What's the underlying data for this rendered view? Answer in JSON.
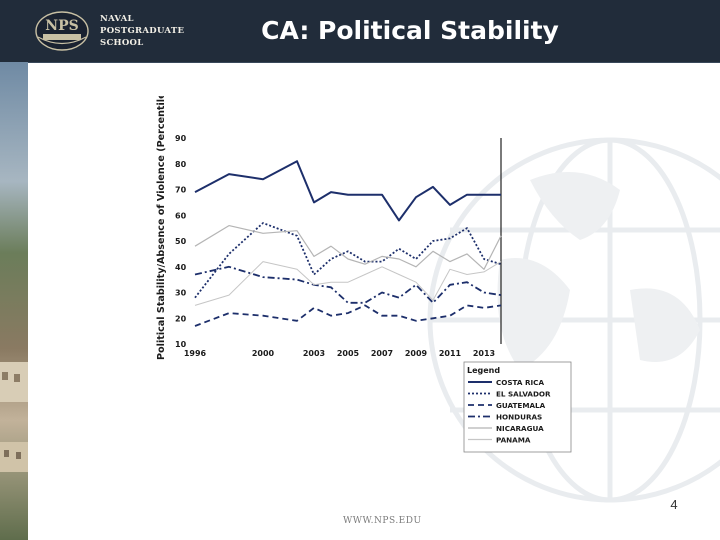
{
  "header": {
    "logo_lines": [
      "NAVAL",
      "POSTGRADUATE",
      "SCHOOL"
    ],
    "logo_badge": "NPS",
    "title": "CA: Political Stability",
    "background_color": "#212c3a"
  },
  "footer": {
    "url": "WWW.NPS.EDU",
    "page_number": "4"
  },
  "chart_data": {
    "type": "line",
    "title": "",
    "xlabel": "",
    "ylabel": "Political Stability/Absence of Violence (Percentile)",
    "xlim": [
      1996,
      2014
    ],
    "ylim": [
      10,
      90
    ],
    "x_tick_labels": [
      "1996",
      "2000",
      "2003",
      "2005",
      "2007",
      "2009",
      "2011",
      "2013"
    ],
    "y_ticks": [
      10,
      20,
      30,
      40,
      50,
      60,
      70,
      80,
      90
    ],
    "x": [
      1996,
      1998,
      2000,
      2002,
      2003,
      2004,
      2005,
      2006,
      2007,
      2008,
      2009,
      2010,
      2011,
      2012,
      2013,
      2014
    ],
    "legend": {
      "title": "Legend",
      "position": "bottom-right"
    },
    "series": [
      {
        "name": "COSTA RICA",
        "style": "solid",
        "color": "#1d2f6b",
        "values": [
          69,
          76,
          74,
          81,
          65,
          69,
          68,
          68,
          68,
          58,
          67,
          71,
          64,
          68,
          68,
          68
        ]
      },
      {
        "name": "EL SALVADOR",
        "style": "dotted",
        "color": "#1d2f6b",
        "values": [
          28,
          45,
          57,
          52,
          37,
          43,
          46,
          42,
          42,
          47,
          43,
          50,
          51,
          55,
          43,
          41
        ]
      },
      {
        "name": "GUATEMALA",
        "style": "dashed",
        "color": "#1d2f6b",
        "values": [
          17,
          22,
          21,
          19,
          24,
          21,
          22,
          25,
          21,
          21,
          19,
          20,
          21,
          25,
          24,
          25
        ]
      },
      {
        "name": "HONDURAS",
        "style": "dashdot",
        "color": "#1d2f6b",
        "values": [
          37,
          40,
          36,
          35,
          33,
          32,
          26,
          26,
          30,
          28,
          33,
          26,
          33,
          34,
          30,
          29
        ]
      },
      {
        "name": "NICARAGUA",
        "style": "solid-light",
        "color": "#b5b5b5",
        "values": [
          48,
          56,
          53,
          54,
          44,
          48,
          43,
          41,
          44,
          43,
          40,
          46,
          42,
          45,
          39,
          52
        ]
      },
      {
        "name": "PANAMA",
        "style": "solid-thin",
        "color": "#c6c6c6",
        "values": [
          25,
          29,
          42,
          39,
          33,
          34,
          34,
          37,
          40,
          37,
          34,
          27,
          39,
          37,
          38,
          42
        ]
      }
    ]
  }
}
